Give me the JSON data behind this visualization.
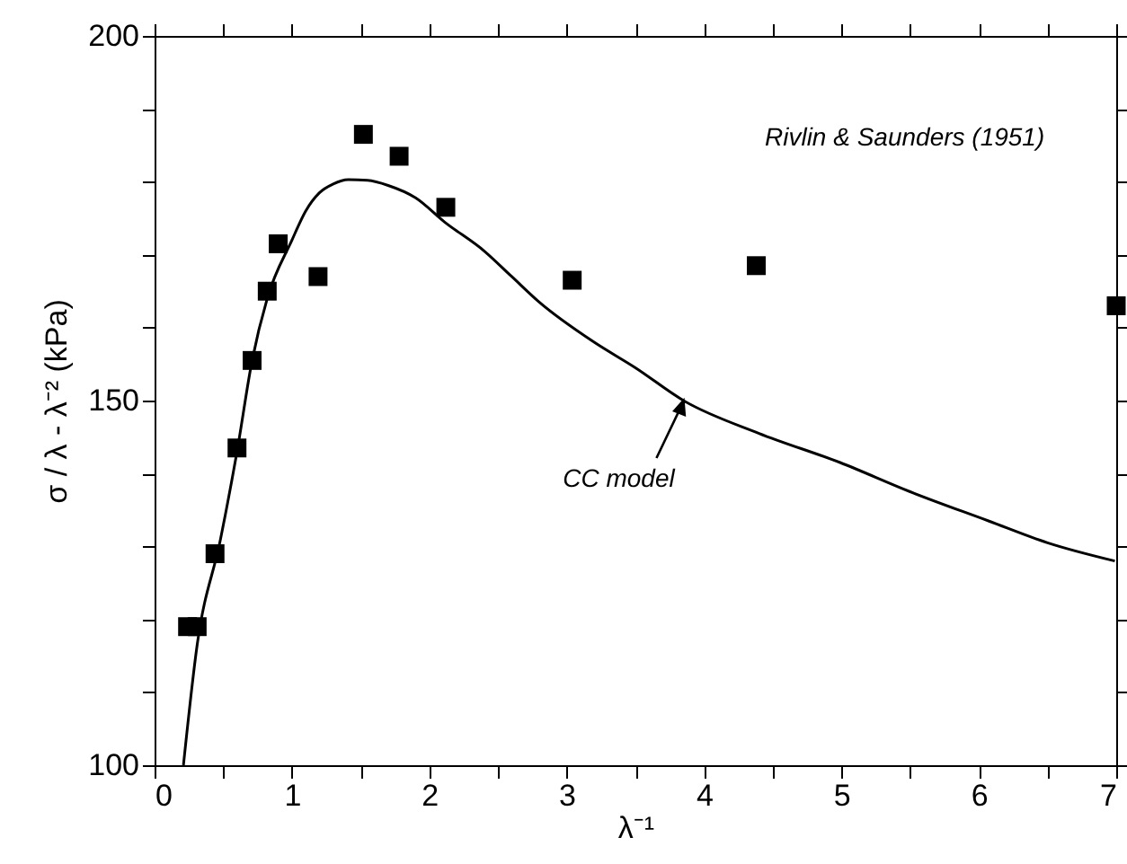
{
  "chart_data": {
    "type": "scatter",
    "xlabel": "λ⁻¹",
    "ylabel": "σ / λ - λ⁻²  (kPa)",
    "series": [
      {
        "color": "#000000",
        "marker": "square",
        "x": [
          0.24,
          0.31,
          0.44,
          0.6,
          0.71,
          0.82,
          0.9,
          1.19,
          1.52,
          1.78,
          2.12,
          3.04,
          4.38,
          7.0
        ],
        "values": [
          119,
          119,
          129,
          143.5,
          155.5,
          165,
          171.5,
          167,
          186.5,
          183.5,
          176.5,
          166.5,
          168.5,
          163
        ]
      },
      {
        "type": "line",
        "color": "#000000",
        "line_style": "solid",
        "x": [
          0.21,
          0.31,
          0.48,
          0.6,
          0.71,
          0.82,
          1.0,
          1.1,
          1.2,
          1.3,
          1.41,
          1.55,
          1.7,
          1.9,
          2.11,
          2.4,
          2.6,
          2.8,
          3.2,
          3.5,
          3.85,
          4.4,
          4.99,
          5.5,
          6.07,
          6.5,
          6.99
        ],
        "values": [
          100,
          116.5,
          131,
          143,
          155.5,
          164,
          172,
          176,
          178.5,
          179.7,
          180.3,
          180.2,
          179.5,
          177.8,
          174.5,
          170.5,
          167,
          163.5,
          158,
          154.5,
          150,
          145.5,
          141.5,
          137.5,
          133.5,
          130.5,
          128
        ]
      }
    ],
    "annotations": [
      "Rivlin & Saunders (1951)",
      {
        "text": "CC model",
        "x": 3.85,
        "y": 150
      }
    ],
    "xlim": [
      0,
      7
    ],
    "ylim": [
      100,
      200
    ],
    "xticks": [
      0,
      {
        "value": 0.5,
        "label": null
      },
      1,
      {
        "value": 1.5,
        "label": null
      },
      2,
      {
        "value": 2.5,
        "label": null
      },
      3,
      {
        "value": 3.5,
        "label": null
      },
      4,
      {
        "value": 4.5,
        "label": null
      },
      5,
      {
        "value": 5.5,
        "label": null
      },
      6,
      {
        "value": 6.5,
        "label": null
      },
      7
    ],
    "yticks": [
      100,
      {
        "value": 110,
        "label": null
      },
      {
        "value": 120,
        "label": null
      },
      {
        "value": 130,
        "label": null
      },
      {
        "value": 140,
        "label": null
      },
      150,
      {
        "value": 160,
        "label": null
      },
      {
        "value": 170,
        "label": null
      },
      {
        "value": 180,
        "label": null
      },
      {
        "value": 190,
        "label": null
      },
      200
    ],
    "grid": false
  }
}
